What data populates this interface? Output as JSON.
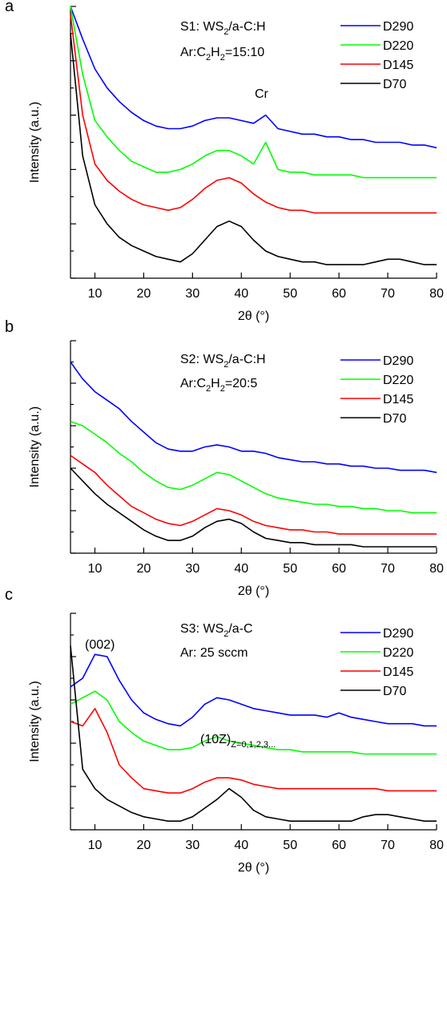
{
  "chart_data": [
    {
      "type": "line",
      "panel": "a",
      "xlabel": "2θ (°)",
      "ylabel": "Intensity (a.u.)",
      "xlim": [
        5,
        80
      ],
      "xticks": [
        10,
        20,
        30,
        40,
        50,
        60,
        70,
        80
      ],
      "ylim": [
        0,
        100
      ],
      "yticks": [
        0,
        10,
        20,
        30,
        40,
        50,
        60,
        70,
        80,
        90,
        100
      ],
      "legend": "upper right",
      "annotations": [
        [
          {
            "text": "S1: WS"
          },
          {
            "text": "2",
            "sub": true
          },
          {
            "text": "/a-C:H"
          }
        ],
        [
          {
            "text": "Ar:C"
          },
          {
            "text": "2",
            "sub": true
          },
          {
            "text": "H"
          },
          {
            "text": "2",
            "sub": true
          },
          {
            "text": "=15:10"
          }
        ],
        [
          {
            "text": "Cr"
          }
        ]
      ],
      "x": [
        5,
        7.5,
        10,
        12.5,
        15,
        17.5,
        20,
        22.5,
        25,
        27.5,
        30,
        32.5,
        35,
        37.5,
        40,
        42.5,
        45,
        47.5,
        50,
        52.5,
        55,
        57.5,
        60,
        62.5,
        65,
        67.5,
        70,
        72.5,
        75,
        77.5,
        80
      ],
      "series": [
        {
          "name": "D290",
          "color": "#0000ff",
          "values": [
            100,
            88,
            77,
            70,
            65,
            61,
            58,
            56,
            55,
            55,
            56,
            58,
            59,
            59,
            58,
            57,
            60,
            55,
            54,
            53,
            53,
            52,
            52,
            51,
            51,
            50,
            50,
            50,
            49,
            49,
            48
          ]
        },
        {
          "name": "D220",
          "color": "#00ff00",
          "values": [
            100,
            75,
            58,
            52,
            47,
            43,
            41,
            39,
            39,
            40,
            42,
            45,
            47,
            47,
            45,
            42,
            50,
            40,
            39,
            39,
            38,
            38,
            38,
            38,
            37,
            37,
            37,
            37,
            37,
            37,
            37
          ]
        },
        {
          "name": "D145",
          "color": "#ff0000",
          "values": [
            97,
            60,
            42,
            36,
            32,
            29,
            27,
            26,
            25,
            26,
            29,
            33,
            36,
            37,
            35,
            31,
            28,
            26,
            25,
            25,
            24,
            24,
            24,
            24,
            24,
            24,
            24,
            24,
            24,
            24,
            24
          ]
        },
        {
          "name": "D70",
          "color": "#000000",
          "values": [
            90,
            45,
            27,
            20,
            15,
            12,
            10,
            8,
            7,
            6,
            9,
            14,
            19,
            21,
            19,
            14,
            10,
            8,
            7,
            6,
            6,
            5,
            5,
            5,
            5,
            6,
            7,
            7,
            6,
            5,
            5
          ]
        }
      ]
    },
    {
      "type": "line",
      "panel": "b",
      "xlabel": "2θ (°)",
      "ylabel": "Intensity (a.u.)",
      "xlim": [
        5,
        80
      ],
      "xticks": [
        10,
        20,
        30,
        40,
        50,
        60,
        70,
        80
      ],
      "ylim": [
        0,
        100
      ],
      "yticks": [
        0,
        10,
        20,
        30,
        40,
        50,
        60,
        70,
        80,
        90,
        100
      ],
      "legend": "upper right",
      "annotations": [
        [
          {
            "text": "S2: WS"
          },
          {
            "text": "2",
            "sub": true
          },
          {
            "text": "/a-C:H"
          }
        ],
        [
          {
            "text": "Ar:C"
          },
          {
            "text": "2",
            "sub": true
          },
          {
            "text": "H"
          },
          {
            "text": "2",
            "sub": true
          },
          {
            "text": "=20:5"
          }
        ]
      ],
      "x": [
        5,
        7.5,
        10,
        12.5,
        15,
        17.5,
        20,
        22.5,
        25,
        27.5,
        30,
        32.5,
        35,
        37.5,
        40,
        42.5,
        45,
        47.5,
        50,
        52.5,
        55,
        57.5,
        60,
        62.5,
        65,
        67.5,
        70,
        72.5,
        75,
        77.5,
        80
      ],
      "series": [
        {
          "name": "D290",
          "color": "#0000ff",
          "values": [
            90,
            82,
            76,
            72,
            68,
            62,
            57,
            52,
            49,
            48,
            48,
            50,
            51,
            50,
            48,
            48,
            47,
            45,
            44,
            43,
            43,
            42,
            42,
            41,
            41,
            40,
            40,
            39,
            39,
            39,
            38
          ]
        },
        {
          "name": "D220",
          "color": "#00ff00",
          "values": [
            62,
            60,
            56,
            52,
            47,
            43,
            38,
            34,
            31,
            30,
            32,
            35,
            38,
            37,
            34,
            31,
            28,
            26,
            25,
            24,
            23,
            23,
            22,
            22,
            21,
            21,
            20,
            20,
            19,
            19,
            19
          ]
        },
        {
          "name": "D145",
          "color": "#ff0000",
          "values": [
            46,
            42,
            38,
            32,
            27,
            22,
            19,
            16,
            14,
            13,
            15,
            18,
            21,
            20,
            18,
            15,
            13,
            12,
            11,
            11,
            10,
            10,
            9,
            9,
            9,
            9,
            9,
            9,
            9,
            9,
            9
          ]
        },
        {
          "name": "D70",
          "color": "#000000",
          "values": [
            40,
            34,
            28,
            23,
            19,
            15,
            11,
            8,
            6,
            6,
            8,
            12,
            15,
            16,
            14,
            10,
            7,
            6,
            5,
            5,
            4,
            4,
            4,
            4,
            3,
            3,
            3,
            3,
            3,
            3,
            3
          ]
        }
      ]
    },
    {
      "type": "line",
      "panel": "c",
      "xlabel": "2θ (°)",
      "ylabel": "Intensity (a.u.)",
      "xlim": [
        5,
        80
      ],
      "xticks": [
        10,
        20,
        30,
        40,
        50,
        60,
        70,
        80
      ],
      "ylim": [
        0,
        100
      ],
      "yticks": [
        0,
        10,
        20,
        30,
        40,
        50,
        60,
        70,
        80,
        90,
        100
      ],
      "legend": "upper right",
      "annotations": [
        [
          {
            "text": "S3: WS"
          },
          {
            "text": "2",
            "sub": true
          },
          {
            "text": "/a-C"
          }
        ],
        [
          {
            "text": "Ar: 25 sccm"
          }
        ],
        [
          {
            "text": "(002)"
          }
        ],
        [
          {
            "text": "(10Z)"
          },
          {
            "text": "Z=0,1,2,3...",
            "sub": true
          }
        ]
      ],
      "x": [
        5,
        7.5,
        10,
        12.5,
        15,
        17.5,
        20,
        22.5,
        25,
        27.5,
        30,
        32.5,
        35,
        37.5,
        40,
        42.5,
        45,
        47.5,
        50,
        52.5,
        55,
        57.5,
        60,
        62.5,
        65,
        67.5,
        70,
        72.5,
        75,
        77.5,
        80
      ],
      "series": [
        {
          "name": "D290",
          "color": "#0000ff",
          "values": [
            66,
            70,
            81,
            80,
            69,
            60,
            54,
            51,
            49,
            48,
            52,
            58,
            61,
            60,
            58,
            56,
            55,
            54,
            53,
            53,
            53,
            52,
            54,
            52,
            51,
            50,
            49,
            49,
            49,
            48,
            48
          ]
        },
        {
          "name": "D220",
          "color": "#00ff00",
          "values": [
            58,
            61,
            64,
            60,
            50,
            45,
            41,
            39,
            37,
            37,
            38,
            41,
            43,
            41,
            40,
            39,
            38,
            37,
            37,
            36,
            36,
            36,
            36,
            36,
            35,
            35,
            35,
            35,
            35,
            35,
            35
          ]
        },
        {
          "name": "D145",
          "color": "#ff0000",
          "values": [
            50,
            48,
            56,
            45,
            30,
            24,
            19,
            18,
            17,
            17,
            19,
            22,
            24,
            24,
            23,
            21,
            20,
            19,
            19,
            19,
            19,
            19,
            19,
            19,
            19,
            19,
            18,
            18,
            18,
            18,
            18
          ]
        },
        {
          "name": "D70",
          "color": "#000000",
          "values": [
            85,
            28,
            19,
            14,
            11,
            8,
            6,
            5,
            4,
            4,
            6,
            10,
            14,
            19,
            15,
            9,
            6,
            5,
            4,
            4,
            4,
            4,
            4,
            4,
            6,
            7,
            7,
            6,
            5,
            4,
            4
          ]
        }
      ]
    }
  ]
}
